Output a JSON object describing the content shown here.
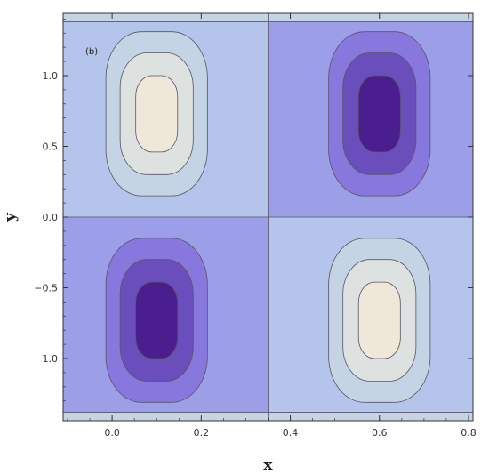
{
  "chart_data": {
    "type": "contour",
    "panel_label": "(b)",
    "title": "",
    "xlabel": "x",
    "ylabel": "y",
    "xlim": [
      -0.11,
      0.81
    ],
    "ylim": [
      -1.44,
      1.44
    ],
    "x_ticks": [
      0.0,
      0.2,
      0.4,
      0.6,
      0.8
    ],
    "x_tick_labels": [
      "0.0",
      "0.2",
      "0.4",
      "0.6",
      "0.8"
    ],
    "y_ticks": [
      -1.0,
      -0.5,
      0.0,
      0.5,
      1.0
    ],
    "y_tick_labels": [
      "−1.0",
      "−0.5",
      "0.0",
      "0.5",
      "1.0"
    ],
    "levels": [
      {
        "color": "#EFE8D8"
      },
      {
        "color": "#DDE2E0"
      },
      {
        "color": "#C4D4E4"
      },
      {
        "color": "#B4C4EA"
      },
      {
        "color": "#9C9EE8"
      },
      {
        "color": "#8878DE"
      },
      {
        "color": "#6A4EBC"
      },
      {
        "color": "#4A1E8E"
      }
    ],
    "extrema": [
      {
        "kind": "max",
        "x": 0.1,
        "y": 0.73
      },
      {
        "kind": "min",
        "x": 0.6,
        "y": 0.73
      },
      {
        "kind": "min",
        "x": 0.1,
        "y": -0.73
      },
      {
        "kind": "max",
        "x": 0.6,
        "y": -0.73
      }
    ],
    "zero_lines": {
      "x": 0.35,
      "y": 0.0
    },
    "grid": false,
    "legend": "none"
  }
}
